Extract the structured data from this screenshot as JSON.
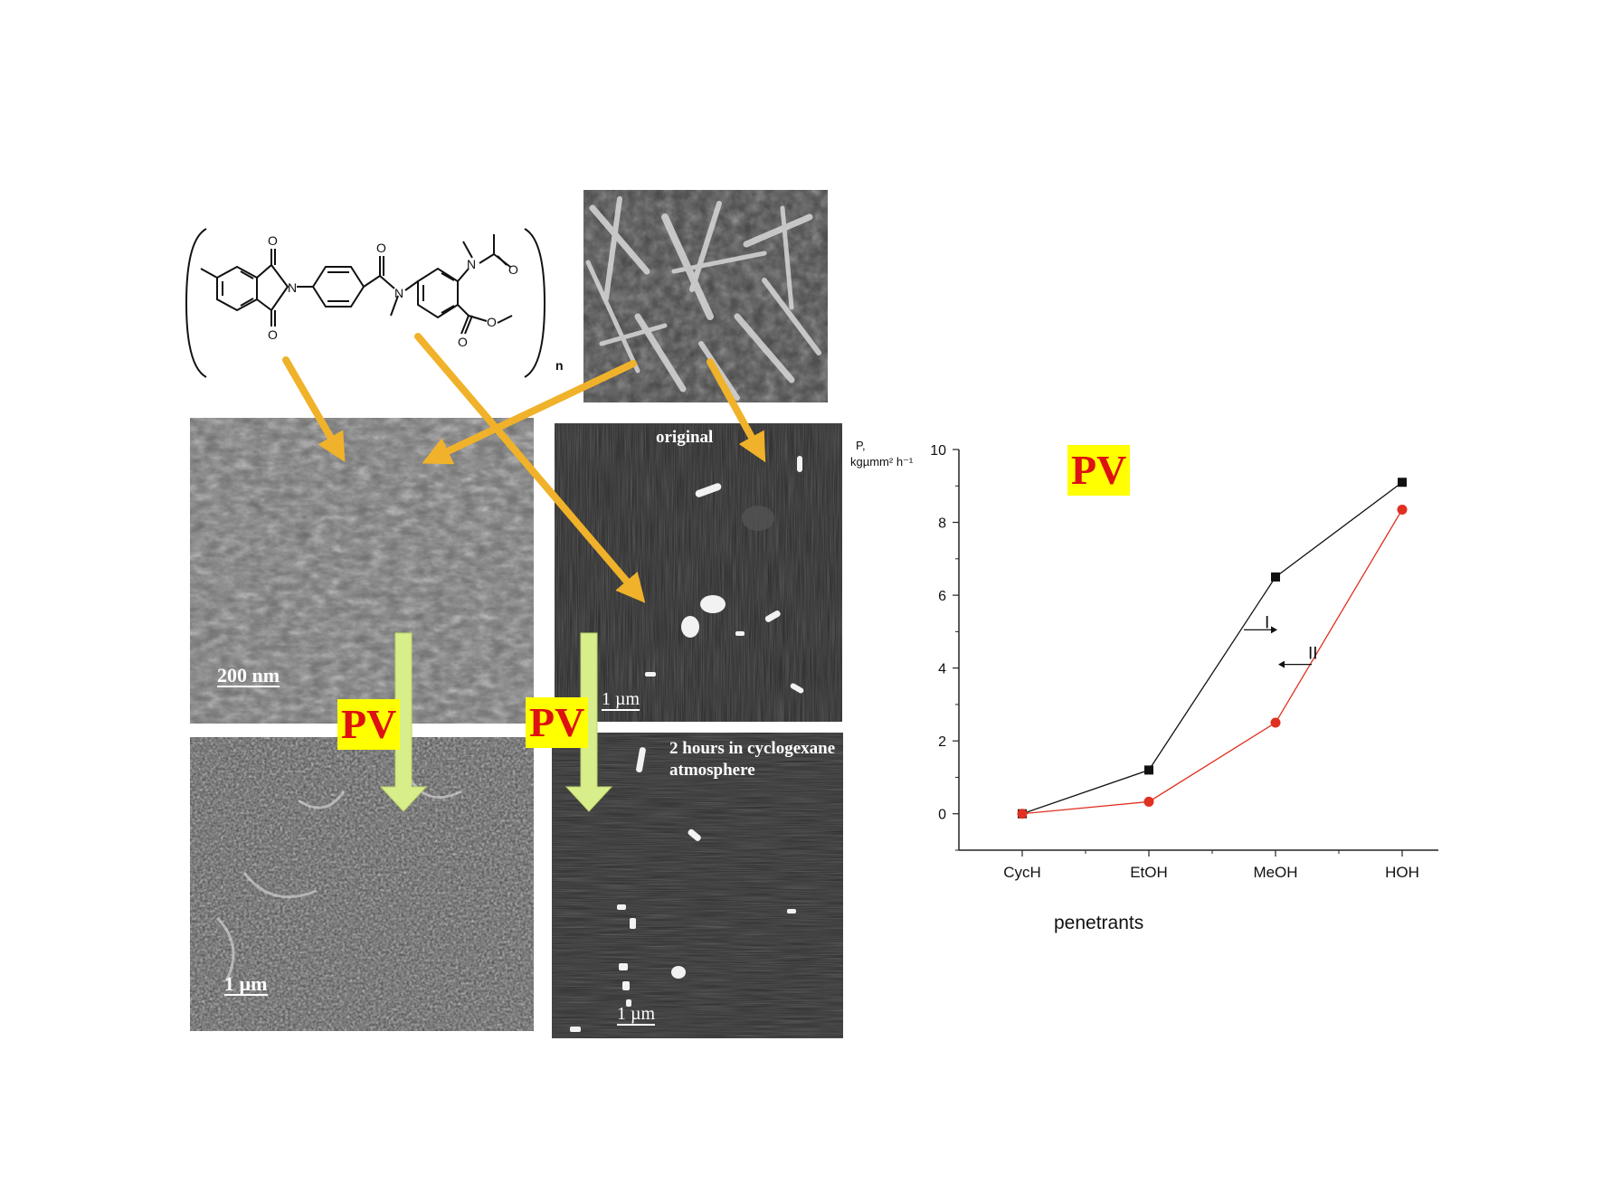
{
  "structure": {
    "subscript_n": "n",
    "atoms_O": "O",
    "atoms_N": "N"
  },
  "panels": {
    "sem_top_scale": "200 nm",
    "sem_bottom_scale": "1 µm",
    "afm_top_caption": "original",
    "afm_top_scale": "1 µm",
    "afm_bottom_caption_line1": "2 hours in cyclogexane",
    "afm_bottom_caption_line2": "atmosphere",
    "afm_bottom_scale": "1 µm"
  },
  "labels": {
    "pv_left": "PV",
    "pv_middle": "PV",
    "pv_chart": "PV"
  },
  "colors": {
    "orange_arrow": "#f0b22a",
    "green_arrow": "#d8ee8a",
    "badge_bg": "#ffff00",
    "badge_text": "#dd1111",
    "series_I": "#111111",
    "series_II": "#e03020"
  },
  "chart_data": {
    "type": "line",
    "categories": [
      "CycH",
      "EtOH",
      "MeOH",
      "HOH"
    ],
    "series": [
      {
        "name": "I",
        "values": [
          0.0,
          1.2,
          6.5,
          9.1
        ]
      },
      {
        "name": "II",
        "values": [
          0.0,
          0.33,
          2.5,
          8.35
        ]
      }
    ],
    "ylabel_line1": "P,",
    "ylabel_line2": "kgµmm² h⁻¹",
    "xlabel": "penetrants",
    "ylim": [
      -1,
      10
    ],
    "yticks": [
      0,
      2,
      4,
      6,
      8,
      10
    ],
    "grid": false
  }
}
